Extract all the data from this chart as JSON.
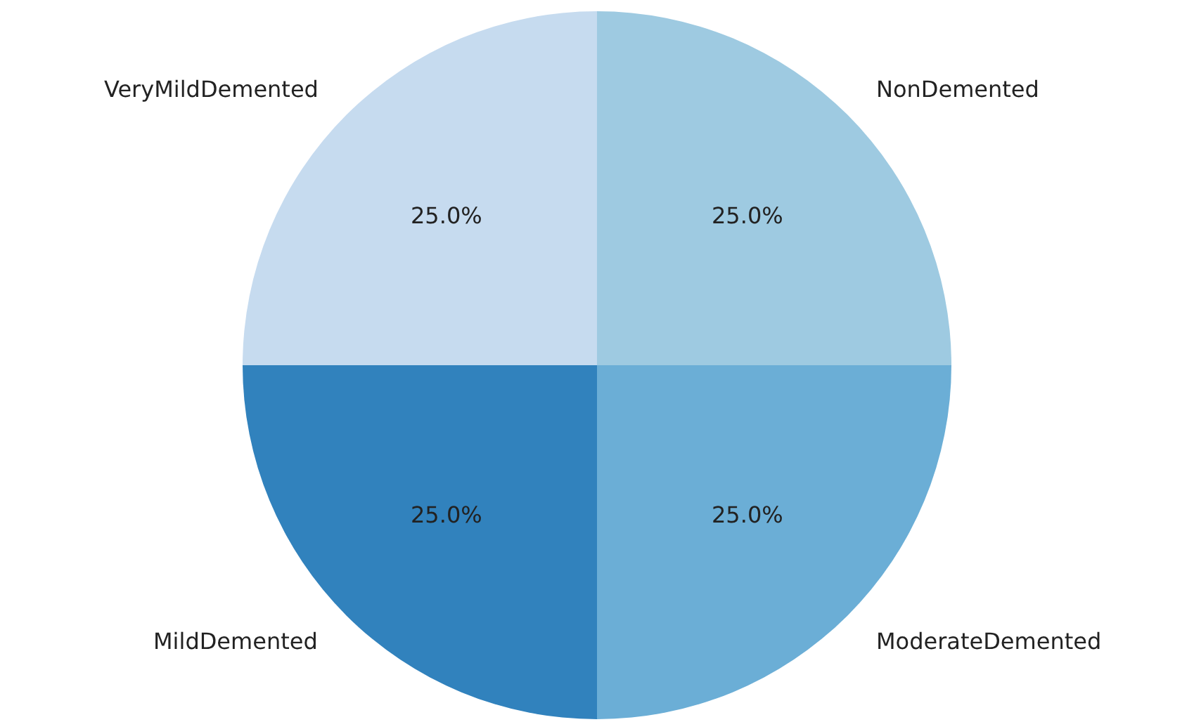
{
  "chart_data": {
    "type": "pie",
    "categories": [
      "NonDemented",
      "VeryMildDemented",
      "MildDemented",
      "ModerateDemented"
    ],
    "values": [
      25,
      25,
      25,
      25
    ],
    "colors": [
      "#9ecae1",
      "#c6dbef",
      "#3182bd",
      "#6baed6"
    ],
    "value_labels": [
      "25.0%",
      "25.0%",
      "25.0%",
      "25.0%"
    ],
    "legend": false
  }
}
